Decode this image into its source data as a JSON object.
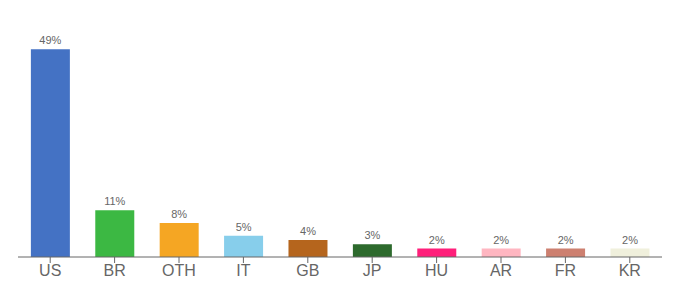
{
  "chart_data": {
    "type": "bar",
    "categories": [
      "US",
      "BR",
      "OTH",
      "IT",
      "GB",
      "JP",
      "HU",
      "AR",
      "FR",
      "KR"
    ],
    "values": [
      49,
      11,
      8,
      5,
      4,
      3,
      2,
      2,
      2,
      2
    ],
    "value_labels": [
      "49%",
      "11%",
      "8%",
      "5%",
      "4%",
      "3%",
      "2%",
      "2%",
      "2%",
      "2%"
    ],
    "colors": [
      "#4472c4",
      "#3cb843",
      "#f5a623",
      "#87ceeb",
      "#b5651d",
      "#2d6a2d",
      "#ff1f7a",
      "#ffb6c1",
      "#cd8070",
      "#f0f0dc"
    ],
    "ylim": [
      0,
      54
    ],
    "data_labels": true,
    "tick_labels": "x",
    "grid": false
  }
}
